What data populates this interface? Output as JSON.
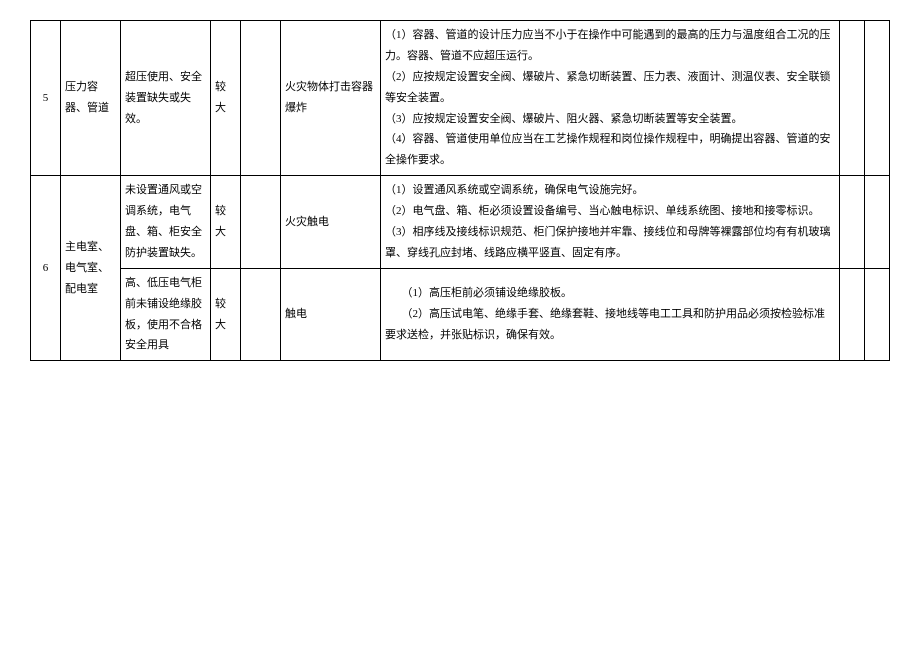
{
  "rows": [
    {
      "idx": "5",
      "location": "压力容器、管道",
      "risk": "超压使用、安全装置缺失或失效。",
      "level": "较大",
      "blank1": "",
      "accident": "火灾物体打击容器爆炸",
      "measures": [
        "（1）容器、管道的设计压力应当不小于在操作中可能遇到的最高的压力与温度组合工况的压力。容器、管道不应超压运行。",
        "（2）应按规定设置安全阀、爆破片、紧急切断装置、压力表、液面计、测温仪表、安全联锁等安全装置。",
        "（3）应按规定设置安全阀、爆破片、阻火器、紧急切断装置等安全装置。",
        "（4）容器、管道使用单位应当在工艺操作规程和岗位操作规程中，明确提出容器、管道的安全操作要求。"
      ],
      "blank2": "",
      "blank3": ""
    },
    {
      "idx": "6",
      "location": "主电室、电气室、配电室",
      "sub": [
        {
          "risk": "未设置通风或空调系统，电气盘、箱、柜安全防护装置缺失。",
          "level": "较大",
          "blank1": "",
          "accident": "火灾触电",
          "measures": [
            "（1）设置通风系统或空调系统，确保电气设施完好。",
            "（2）电气盘、箱、柜必须设置设备编号、当心触电标识、单线系统图、接地和接零标识。",
            "（3）相序线及接线标识规范、柜门保护接地并牢靠、接线位和母牌等裸露部位均有有机玻璃罩、穿线孔应封堵、线路应横平竖直、固定有序。"
          ],
          "blank2": "",
          "blank3": ""
        },
        {
          "risk": "高、低压电气柜前未铺设绝缘胶板，使用不合格安全用具",
          "level": "较大",
          "blank1": "",
          "accident": "触电",
          "measures": [
            "（1）高压柜前必须铺设绝缘胶板。",
            "（2）高压试电笔、绝缘手套、绝缘套鞋、接地线等电工工具和防护用品必须按检验标准要求送检，并张贴标识，确保有效。"
          ],
          "blank2": "",
          "blank3": ""
        }
      ]
    }
  ]
}
